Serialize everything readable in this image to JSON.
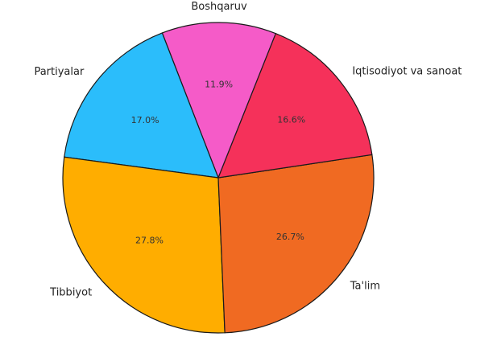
{
  "chart_data": {
    "type": "pie",
    "title": "",
    "slices": [
      {
        "label": "Boshqaruv",
        "value": 11.9,
        "pct_label": "11.9%",
        "color": "#F55BC8"
      },
      {
        "label": "Partiyalar",
        "value": 17.0,
        "pct_label": "17.0%",
        "color": "#2BBDFB"
      },
      {
        "label": "Tibbiyot",
        "value": 27.8,
        "pct_label": "27.8%",
        "color": "#FFAD00"
      },
      {
        "label": "Ta'lim",
        "value": 26.7,
        "pct_label": "26.7%",
        "color": "#F06A22"
      },
      {
        "label": "Iqtisodiyot va sanoat",
        "value": 16.6,
        "pct_label": "16.6%",
        "color": "#F5315A"
      }
    ],
    "start_angle_deg": 68.3,
    "direction": "counterclockwise",
    "legend": "none"
  }
}
